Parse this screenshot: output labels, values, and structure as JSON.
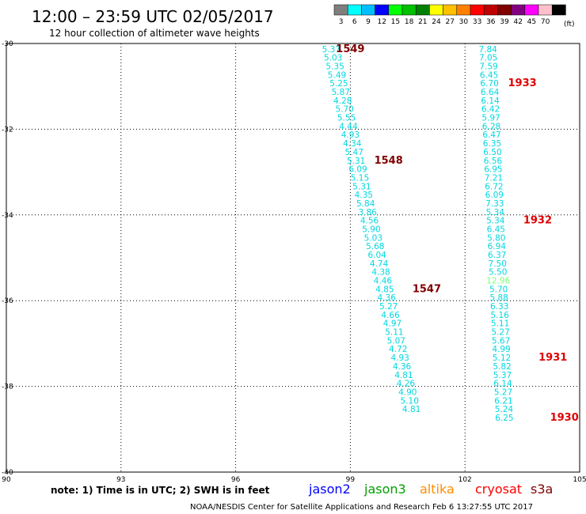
{
  "header": {
    "title": "12:00 – 23:59 UTC 02/05/2017",
    "subtitle": "12 hour collection of altimeter wave heights"
  },
  "color_scale": {
    "unit": "(ft)",
    "bins": [
      {
        "label": "3",
        "color": "#7f7f7f"
      },
      {
        "label": "6",
        "color": "#00ffff"
      },
      {
        "label": "9",
        "color": "#00bfff"
      },
      {
        "label": "12",
        "color": "#0000ff"
      },
      {
        "label": "15",
        "color": "#00ff00"
      },
      {
        "label": "18",
        "color": "#00c000"
      },
      {
        "label": "21",
        "color": "#008000"
      },
      {
        "label": "24",
        "color": "#ffff00"
      },
      {
        "label": "27",
        "color": "#ffc000"
      },
      {
        "label": "30",
        "color": "#ff8000"
      },
      {
        "label": "33",
        "color": "#ff0000"
      },
      {
        "label": "36",
        "color": "#c00000"
      },
      {
        "label": "39",
        "color": "#800000"
      },
      {
        "label": "42",
        "color": "#800080"
      },
      {
        "label": "45",
        "color": "#ff00ff"
      },
      {
        "label": "70",
        "color": "#ffc0cb"
      },
      {
        "label": "",
        "color": "#000000"
      }
    ]
  },
  "footer": {
    "note": "note:  1) Time is in UTC;  2) SWH is in feet",
    "credit": "NOAA/NESDIS Center for Satellite Applications and Research    Feb  6 13:27:55 UTC 2017"
  },
  "satellites": [
    {
      "name": "jason2",
      "color": "#0000ff"
    },
    {
      "name": "jason3",
      "color": "#00a000"
    },
    {
      "name": "altika",
      "color": "#ff8c00"
    },
    {
      "name": "cryosat",
      "color": "#ff0000"
    },
    {
      "name": "s3a",
      "color": "#800000"
    }
  ],
  "chart_data": {
    "type": "scatter",
    "xlim": [
      90,
      105
    ],
    "ylim": [
      -40,
      -30
    ],
    "x_ticks": [
      "90",
      "93",
      "96",
      "99",
      "102",
      "105"
    ],
    "y_ticks": [
      "-30",
      "-32",
      "-34",
      "-36",
      "-38",
      "-40"
    ],
    "grid": true,
    "tracks": [
      {
        "satellite": "s3a",
        "color": "#00d8e0",
        "values": [
          {
            "lon": 98.5,
            "lat": -30.2,
            "v": "5.37"
          },
          {
            "lon": 98.55,
            "lat": -30.4,
            "v": "5.03"
          },
          {
            "lon": 98.6,
            "lat": -30.6,
            "v": "5.35"
          },
          {
            "lon": 98.65,
            "lat": -30.8,
            "v": "5.49"
          },
          {
            "lon": 98.7,
            "lat": -31.0,
            "v": "5.25"
          },
          {
            "lon": 98.75,
            "lat": -31.2,
            "v": "5.87"
          },
          {
            "lon": 98.8,
            "lat": -31.4,
            "v": "4.28"
          },
          {
            "lon": 98.85,
            "lat": -31.6,
            "v": "5.70"
          },
          {
            "lon": 98.9,
            "lat": -31.8,
            "v": "5.55"
          },
          {
            "lon": 98.95,
            "lat": -32.0,
            "v": "4.44"
          },
          {
            "lon": 99.0,
            "lat": -32.2,
            "v": "4.93"
          },
          {
            "lon": 99.05,
            "lat": -32.4,
            "v": "4.34"
          },
          {
            "lon": 99.1,
            "lat": -32.6,
            "v": "5.47"
          },
          {
            "lon": 99.15,
            "lat": -32.8,
            "v": "5.31"
          },
          {
            "lon": 99.2,
            "lat": -33.0,
            "v": "6.09"
          },
          {
            "lon": 99.25,
            "lat": -33.2,
            "v": "5.15"
          },
          {
            "lon": 99.3,
            "lat": -33.4,
            "v": "5.31"
          },
          {
            "lon": 99.35,
            "lat": -33.6,
            "v": "4.35"
          },
          {
            "lon": 99.4,
            "lat": -33.8,
            "v": "5.84"
          },
          {
            "lon": 99.45,
            "lat": -34.0,
            "v": "3.86"
          },
          {
            "lon": 99.5,
            "lat": -34.2,
            "v": "4.56"
          },
          {
            "lon": 99.55,
            "lat": -34.4,
            "v": "5.90"
          },
          {
            "lon": 99.6,
            "lat": -34.6,
            "v": "5.03"
          },
          {
            "lon": 99.65,
            "lat": -34.8,
            "v": "5.68"
          },
          {
            "lon": 99.7,
            "lat": -35.0,
            "v": "6.04"
          },
          {
            "lon": 99.75,
            "lat": -35.2,
            "v": "4.74"
          },
          {
            "lon": 99.8,
            "lat": -35.4,
            "v": "4.38"
          },
          {
            "lon": 99.85,
            "lat": -35.6,
            "v": "4.46"
          },
          {
            "lon": 99.9,
            "lat": -35.8,
            "v": "4.85"
          },
          {
            "lon": 99.95,
            "lat": -36.0,
            "v": "4.36"
          },
          {
            "lon": 100.0,
            "lat": -36.2,
            "v": "5.27"
          },
          {
            "lon": 100.05,
            "lat": -36.4,
            "v": "4.66"
          },
          {
            "lon": 100.1,
            "lat": -36.6,
            "v": "4.97"
          },
          {
            "lon": 100.15,
            "lat": -36.8,
            "v": "5.11"
          },
          {
            "lon": 100.2,
            "lat": -37.0,
            "v": "5.07"
          },
          {
            "lon": 100.25,
            "lat": -37.2,
            "v": "4.72"
          },
          {
            "lon": 100.3,
            "lat": -37.4,
            "v": "4.93"
          },
          {
            "lon": 100.35,
            "lat": -37.6,
            "v": "4.36"
          },
          {
            "lon": 100.4,
            "lat": -37.8,
            "v": "4.81"
          },
          {
            "lon": 100.45,
            "lat": -38.0,
            "v": "4.26"
          },
          {
            "lon": 100.5,
            "lat": -38.2,
            "v": "4.90"
          },
          {
            "lon": 100.55,
            "lat": -38.4,
            "v": "5.10"
          },
          {
            "lon": 100.6,
            "lat": -38.6,
            "v": "4.81"
          }
        ],
        "time_labels": [
          {
            "lon": 99.0,
            "lat": -30.2,
            "text": "1549"
          },
          {
            "lon": 100.0,
            "lat": -32.8,
            "text": "1548"
          },
          {
            "lon": 101.0,
            "lat": -35.8,
            "text": "1547"
          }
        ]
      },
      {
        "satellite": "cryosat",
        "color": "#00d8e0",
        "values": [
          {
            "lon": 102.6,
            "lat": -30.2,
            "v": "7.84"
          },
          {
            "lon": 102.61,
            "lat": -30.4,
            "v": "7.05"
          },
          {
            "lon": 102.62,
            "lat": -30.6,
            "v": "7.59"
          },
          {
            "lon": 102.63,
            "lat": -30.8,
            "v": "6.45"
          },
          {
            "lon": 102.64,
            "lat": -31.0,
            "v": "6.70"
          },
          {
            "lon": 102.65,
            "lat": -31.2,
            "v": "6.64"
          },
          {
            "lon": 102.66,
            "lat": -31.4,
            "v": "6.14"
          },
          {
            "lon": 102.67,
            "lat": -31.6,
            "v": "6.42"
          },
          {
            "lon": 102.68,
            "lat": -31.8,
            "v": "5.97"
          },
          {
            "lon": 102.69,
            "lat": -32.0,
            "v": "6.28"
          },
          {
            "lon": 102.7,
            "lat": -32.2,
            "v": "6.47"
          },
          {
            "lon": 102.71,
            "lat": -32.4,
            "v": "6.35"
          },
          {
            "lon": 102.72,
            "lat": -32.6,
            "v": "6.50"
          },
          {
            "lon": 102.73,
            "lat": -32.8,
            "v": "6.56"
          },
          {
            "lon": 102.74,
            "lat": -33.0,
            "v": "6.95"
          },
          {
            "lon": 102.75,
            "lat": -33.2,
            "v": "7.21"
          },
          {
            "lon": 102.76,
            "lat": -33.4,
            "v": "6.72"
          },
          {
            "lon": 102.77,
            "lat": -33.6,
            "v": "6.09"
          },
          {
            "lon": 102.78,
            "lat": -33.8,
            "v": "7.33"
          },
          {
            "lon": 102.79,
            "lat": -34.0,
            "v": "5.34"
          },
          {
            "lon": 102.8,
            "lat": -34.2,
            "v": "5.34"
          },
          {
            "lon": 102.81,
            "lat": -34.4,
            "v": "6.45"
          },
          {
            "lon": 102.82,
            "lat": -34.6,
            "v": "5.80"
          },
          {
            "lon": 102.83,
            "lat": -34.8,
            "v": "6.94"
          },
          {
            "lon": 102.84,
            "lat": -35.0,
            "v": "6.37"
          },
          {
            "lon": 102.85,
            "lat": -35.2,
            "v": "7.50"
          },
          {
            "lon": 102.86,
            "lat": -35.4,
            "v": "5.50"
          },
          {
            "lon": 102.87,
            "lat": -35.6,
            "v": "12.96",
            "color": "#7fff7f"
          },
          {
            "lon": 102.88,
            "lat": -35.8,
            "v": "5.70"
          },
          {
            "lon": 102.89,
            "lat": -36.0,
            "v": "5.88"
          },
          {
            "lon": 102.9,
            "lat": -36.2,
            "v": "6.33"
          },
          {
            "lon": 102.91,
            "lat": -36.4,
            "v": "5.16"
          },
          {
            "lon": 102.92,
            "lat": -36.6,
            "v": "5.11"
          },
          {
            "lon": 102.93,
            "lat": -36.8,
            "v": "5.27"
          },
          {
            "lon": 102.94,
            "lat": -37.0,
            "v": "5.67"
          },
          {
            "lon": 102.95,
            "lat": -37.2,
            "v": "4.99"
          },
          {
            "lon": 102.96,
            "lat": -37.4,
            "v": "5.12"
          },
          {
            "lon": 102.97,
            "lat": -37.6,
            "v": "5.82"
          },
          {
            "lon": 102.98,
            "lat": -37.8,
            "v": "5.37"
          },
          {
            "lon": 102.99,
            "lat": -38.0,
            "v": "6.14"
          },
          {
            "lon": 103.0,
            "lat": -38.2,
            "v": "5.27"
          },
          {
            "lon": 103.01,
            "lat": -38.4,
            "v": "6.21"
          },
          {
            "lon": 103.02,
            "lat": -38.6,
            "v": "5.24"
          },
          {
            "lon": 103.03,
            "lat": -38.8,
            "v": "6.25"
          }
        ],
        "time_labels": [
          {
            "lon": 103.5,
            "lat": -31.0,
            "text": "1933"
          },
          {
            "lon": 103.9,
            "lat": -34.2,
            "text": "1932"
          },
          {
            "lon": 104.3,
            "lat": -37.4,
            "text": "1931"
          },
          {
            "lon": 104.6,
            "lat": -38.8,
            "text": "1930"
          }
        ]
      }
    ]
  }
}
